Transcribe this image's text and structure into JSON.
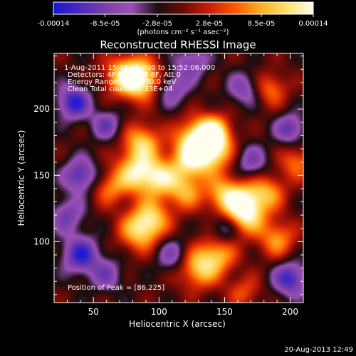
{
  "chart_data": {
    "type": "heatmap",
    "title": "Reconstructed RHESSI Image",
    "xlabel": "Heliocentric X (arcsec)",
    "ylabel": "Heliocentric Y (arcsec)",
    "xlim": [
      20,
      210
    ],
    "ylim": [
      54,
      242
    ],
    "x_ticks": [
      50,
      100,
      150,
      200
    ],
    "y_ticks": [
      100,
      150,
      200
    ],
    "colorbar": {
      "ticks": [
        "-0.00014",
        "-8.5e-05",
        "-2.8e-05",
        "2.8e-05",
        "8.5e-05",
        "0.00014"
      ],
      "unit_label": "(photons cm⁻² s⁻¹ asec⁻²)",
      "range": [
        -0.00014,
        0.00014
      ],
      "colormap": [
        "#1515d8",
        "#4a2ac0",
        "#7a40a8",
        "#9a50b8",
        "#1a0d10",
        "#6e0a06",
        "#c81e08",
        "#ff5a00",
        "#ffb020",
        "#ffe070",
        "#fffff0"
      ]
    },
    "info_text": [
      "1-Aug-2011 15:48:06.000 to 15:52:06.000",
      "Detectors: 4F 5F 6F 7F 8F, Att 0",
      "Energy Range: 25.0 - 50.0 keV",
      "Clean    Total counts: 1.33E+04"
    ],
    "peak_label": "Position of Peak = [86,225]",
    "peak_position": [
      86,
      225
    ],
    "sources": [
      {
        "x": 75,
        "y": 225,
        "amp": 1.0,
        "s": 11
      },
      {
        "x": 88,
        "y": 222,
        "amp": 0.9,
        "s": 10
      },
      {
        "x": 128,
        "y": 177,
        "amp": 0.95,
        "s": 11
      },
      {
        "x": 140,
        "y": 168,
        "amp": 1.0,
        "s": 11
      },
      {
        "x": 142,
        "y": 183,
        "amp": 0.85,
        "s": 9
      },
      {
        "x": 122,
        "y": 160,
        "amp": 0.7,
        "s": 10
      },
      {
        "x": 87,
        "y": 175,
        "amp": 0.85,
        "s": 10
      },
      {
        "x": 82,
        "y": 152,
        "amp": 0.95,
        "s": 11
      },
      {
        "x": 100,
        "y": 148,
        "amp": 0.85,
        "s": 10
      },
      {
        "x": 120,
        "y": 138,
        "amp": 0.7,
        "s": 10
      },
      {
        "x": 62,
        "y": 140,
        "amp": 0.55,
        "s": 9
      },
      {
        "x": 150,
        "y": 135,
        "amp": 0.8,
        "s": 10
      },
      {
        "x": 168,
        "y": 130,
        "amp": 0.9,
        "s": 11
      },
      {
        "x": 165,
        "y": 118,
        "amp": 0.7,
        "s": 10
      },
      {
        "x": 185,
        "y": 138,
        "amp": 0.55,
        "s": 9
      },
      {
        "x": 85,
        "y": 108,
        "amp": 0.85,
        "s": 11
      },
      {
        "x": 95,
        "y": 118,
        "amp": 0.7,
        "s": 10
      },
      {
        "x": 190,
        "y": 102,
        "amp": 0.7,
        "s": 10
      },
      {
        "x": 130,
        "y": 80,
        "amp": 0.85,
        "s": 11
      },
      {
        "x": 145,
        "y": 90,
        "amp": 0.7,
        "s": 10
      },
      {
        "x": 185,
        "y": 215,
        "amp": 0.6,
        "s": 9
      },
      {
        "x": 205,
        "y": 160,
        "amp": 0.6,
        "s": 9
      },
      {
        "x": 165,
        "y": 62,
        "amp": 0.45,
        "s": 9
      },
      {
        "x": 35,
        "y": 205,
        "amp": -0.9,
        "s": 9
      },
      {
        "x": 40,
        "y": 150,
        "amp": -0.8,
        "s": 9
      },
      {
        "x": 60,
        "y": 188,
        "amp": -0.6,
        "s": 8
      },
      {
        "x": 110,
        "y": 215,
        "amp": -0.55,
        "s": 9
      },
      {
        "x": 165,
        "y": 215,
        "amp": -0.55,
        "s": 9
      },
      {
        "x": 170,
        "y": 160,
        "amp": -0.55,
        "s": 9
      },
      {
        "x": 30,
        "y": 120,
        "amp": -0.6,
        "s": 9
      },
      {
        "x": 40,
        "y": 90,
        "amp": -0.85,
        "s": 10
      },
      {
        "x": 200,
        "y": 72,
        "amp": -0.85,
        "s": 9
      },
      {
        "x": 200,
        "y": 185,
        "amp": -0.7,
        "s": 8
      },
      {
        "x": 60,
        "y": 75,
        "amp": -0.5,
        "s": 9
      },
      {
        "x": 110,
        "y": 90,
        "amp": -0.55,
        "s": 9
      },
      {
        "x": 150,
        "y": 110,
        "amp": -0.5,
        "s": 8
      },
      {
        "x": 125,
        "y": 235,
        "amp": -0.55,
        "s": 9
      }
    ]
  },
  "footer": {
    "timestamp": "20-Aug-2013 12:49"
  }
}
